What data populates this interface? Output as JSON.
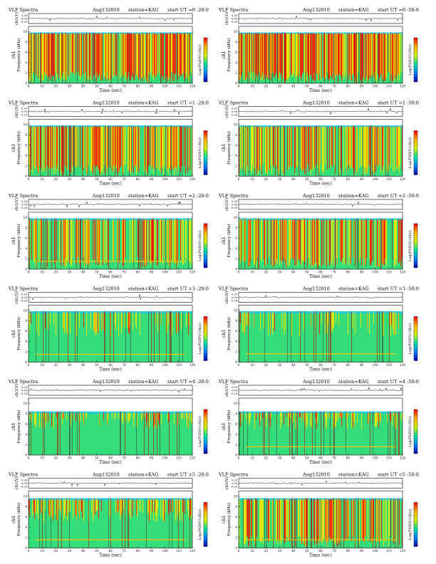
{
  "page": {
    "panels_per_row": 2,
    "rows": 6
  },
  "chart_data": [
    {
      "type": "heatmap",
      "title": "VLF Spectra",
      "date": "Aug132010",
      "station": "station=KAG",
      "start": "start UT =0 :20:0",
      "xlabel": "Time (sec)",
      "ylabel": "Frequency (kHz)",
      "ch_label": "ch1",
      "trace_label": "ch1(V)",
      "trace_ticks": [
        "0.20",
        "0.00",
        "-0.20"
      ],
      "x_ticks": [
        0,
        10,
        20,
        30,
        40,
        50,
        60,
        70,
        80,
        90,
        100,
        110,
        120
      ],
      "y_ticks": [
        0,
        2,
        4,
        6,
        8,
        10
      ],
      "xlim": [
        0,
        120
      ],
      "ylim": [
        0,
        11
      ],
      "colorbar_label": "Log(PSD(V/√Hz))",
      "colorbar_ticks": [
        "-",
        "-",
        "-",
        "-"
      ],
      "activity": 0.85,
      "top_khz": 9.8,
      "line_khz": null
    },
    {
      "type": "heatmap",
      "title": "VLF Spectra",
      "date": "Aug132010",
      "station": "station=KAG",
      "start": "start UT =0 :50:0",
      "xlabel": "Time (sec)",
      "ylabel": "Frequency (kHz)",
      "ch_label": "ch1",
      "trace_label": "ch1(V)",
      "trace_ticks": [
        "0.20",
        "0.00",
        "-0.20"
      ],
      "x_ticks": [
        0,
        10,
        20,
        30,
        40,
        50,
        60,
        70,
        80,
        90,
        100,
        110,
        120
      ],
      "y_ticks": [
        0,
        2,
        4,
        6,
        8,
        10
      ],
      "xlim": [
        0,
        120
      ],
      "ylim": [
        0,
        11
      ],
      "colorbar_label": "Log(PSD(V/√Hz))",
      "colorbar_ticks": [
        "-",
        "-",
        "-",
        "-"
      ],
      "activity": 0.85,
      "top_khz": 9.8,
      "line_khz": null
    },
    {
      "type": "heatmap",
      "title": "VLF Spectra",
      "date": "Aug132010",
      "station": "station=KAG",
      "start": "start UT =1 :20:0",
      "xlabel": "Time (sec)",
      "ylabel": "Frequency (kHz)",
      "ch_label": "ch1",
      "trace_label": "ch1(V)",
      "trace_ticks": [
        "0.20",
        "0.00",
        "-0.20"
      ],
      "x_ticks": [
        0,
        10,
        20,
        30,
        40,
        50,
        60,
        70,
        80,
        90,
        100,
        110,
        120
      ],
      "y_ticks": [
        0,
        2,
        4,
        6,
        8,
        10
      ],
      "xlim": [
        0,
        120
      ],
      "ylim": [
        0,
        11
      ],
      "colorbar_label": "Log(PSD(V/√Hz))",
      "colorbar_ticks": [
        "-",
        "-",
        "-",
        "-"
      ],
      "activity": 0.7,
      "top_khz": 9.8,
      "line_khz": null
    },
    {
      "type": "heatmap",
      "title": "VLF Spectra",
      "date": "Aug132010",
      "station": "station=KAG",
      "start": "start UT =1 :50:0",
      "xlabel": "Time (sec)",
      "ylabel": "Frequency (kHz)",
      "ch_label": "ch1",
      "trace_label": "ch1(V)",
      "trace_ticks": [
        "0.20",
        "0.00",
        "-0.20"
      ],
      "x_ticks": [
        0,
        10,
        20,
        30,
        40,
        50,
        60,
        70,
        80,
        90,
        100,
        110,
        120
      ],
      "y_ticks": [
        0,
        2,
        4,
        6,
        8,
        10
      ],
      "xlim": [
        0,
        120
      ],
      "ylim": [
        0,
        11
      ],
      "colorbar_label": "Log(PSD(V/√Hz))",
      "colorbar_ticks": [
        "-",
        "-",
        "-",
        "-"
      ],
      "activity": 0.6,
      "top_khz": 9.8,
      "line_khz": null
    },
    {
      "type": "heatmap",
      "title": "VLF Spectra",
      "date": "Aug132010",
      "station": "station=KAG",
      "start": "start UT =2 :20:0",
      "xlabel": "Time (sec)",
      "ylabel": "Frequency (kHz)",
      "ch_label": "ch1",
      "trace_label": "ch1(V)",
      "trace_ticks": [
        "0.20",
        "0.00",
        "-0.20"
      ],
      "x_ticks": [
        0,
        10,
        20,
        30,
        40,
        50,
        60,
        70,
        80,
        90,
        100,
        110,
        120
      ],
      "y_ticks": [
        0,
        2,
        4,
        6,
        8,
        10
      ],
      "xlim": [
        0,
        120
      ],
      "ylim": [
        0,
        11
      ],
      "colorbar_label": "Log(PSD(V/√Hz))",
      "colorbar_ticks": [
        "-",
        "-",
        "-",
        "-"
      ],
      "activity": 0.55,
      "top_khz": 9.8,
      "line_khz": 1.5
    },
    {
      "type": "heatmap",
      "title": "VLF Spectra",
      "date": "Aug132010",
      "station": "station=KAG",
      "start": "start UT =2 :50:0",
      "xlabel": "Time (sec)",
      "ylabel": "Frequency (kHz)",
      "ch_label": "ch1",
      "trace_label": "ch1(V)",
      "trace_ticks": [
        "0.20",
        "0.00",
        "-0.20"
      ],
      "x_ticks": [
        0,
        10,
        20,
        30,
        40,
        50,
        60,
        70,
        80,
        90,
        100,
        110,
        120
      ],
      "y_ticks": [
        0,
        2,
        4,
        6,
        8,
        10
      ],
      "xlim": [
        0,
        120
      ],
      "ylim": [
        0,
        11
      ],
      "colorbar_label": "Log(PSD(V/√Hz))",
      "colorbar_ticks": [
        "-",
        "-",
        "-",
        "-"
      ],
      "activity": 0.6,
      "top_khz": 9.8,
      "line_khz": null
    },
    {
      "type": "heatmap",
      "title": "VLF Spectra",
      "date": "Aug132010",
      "station": "station=KAG",
      "start": "start UT =3 :20:0",
      "xlabel": "Time (sec)",
      "ylabel": "Frequency (kHz)",
      "ch_label": "ch1",
      "trace_label": "ch1(V)",
      "trace_ticks": [
        "0.20",
        "0.00",
        "-0.20"
      ],
      "x_ticks": [
        0,
        10,
        20,
        30,
        40,
        50,
        60,
        70,
        80,
        90,
        100,
        110,
        120
      ],
      "y_ticks": [
        0,
        2,
        4,
        6,
        8,
        10
      ],
      "xlim": [
        0,
        120
      ],
      "ylim": [
        0,
        11
      ],
      "colorbar_label": "Log(PSD(V/√Hz))",
      "colorbar_ticks": [
        "-",
        "-",
        "-",
        "-"
      ],
      "activity": 0.25,
      "top_khz": 9.8,
      "line_khz": 1.5
    },
    {
      "type": "heatmap",
      "title": "VLF Spectra",
      "date": "Aug132010",
      "station": "station=KAG",
      "start": "start UT =3 :50:0",
      "xlabel": "Time (sec)",
      "ylabel": "Frequency (kHz)",
      "ch_label": "ch1",
      "trace_label": "ch1(V)",
      "trace_ticks": [
        "0.20",
        "0.00",
        "-0.20"
      ],
      "x_ticks": [
        0,
        10,
        20,
        30,
        40,
        50,
        60,
        70,
        80,
        90,
        100,
        110,
        120
      ],
      "y_ticks": [
        0,
        2,
        4,
        6,
        8,
        10
      ],
      "xlim": [
        0,
        120
      ],
      "ylim": [
        0,
        11
      ],
      "colorbar_label": "Log(PSD(V/√Hz))",
      "colorbar_ticks": [
        "-",
        "-",
        "-",
        "-"
      ],
      "activity": 0.22,
      "top_khz": 9.8,
      "line_khz": 1.6
    },
    {
      "type": "heatmap",
      "title": "VLF Spectra",
      "date": "Aug132010",
      "station": "station=KAG",
      "start": "start UT =4 :20:0",
      "xlabel": "Time (sec)",
      "ylabel": "Frequency (kHz)",
      "ch_label": "ch1",
      "trace_label": "ch1(V)",
      "trace_ticks": [
        "0.20",
        "0.00",
        "-0.20"
      ],
      "x_ticks": [
        0,
        10,
        20,
        30,
        40,
        50,
        60,
        70,
        80,
        90,
        100,
        110,
        120
      ],
      "y_ticks": [
        0,
        2,
        4,
        6,
        8,
        10
      ],
      "xlim": [
        0,
        120
      ],
      "ylim": [
        0,
        11
      ],
      "colorbar_label": "Log(PSD(V/√Hz))",
      "colorbar_ticks": [
        "-",
        "-",
        "-",
        "-"
      ],
      "activity": 0.35,
      "top_khz": 8.4,
      "line_khz": null
    },
    {
      "type": "heatmap",
      "title": "VLF Spectra",
      "date": "Aug132010",
      "station": "station=KAG",
      "start": "start UT =4 :50:0",
      "xlabel": "Time (sec)",
      "ylabel": "Frequency (kHz)",
      "ch_label": "ch1",
      "trace_label": "ch1(V)",
      "trace_ticks": [
        "0.20",
        "0.00",
        "-0.20"
      ],
      "x_ticks": [
        0,
        10,
        20,
        30,
        40,
        50,
        60,
        70,
        80,
        90,
        100,
        110,
        120
      ],
      "y_ticks": [
        0,
        2,
        4,
        6,
        8,
        10
      ],
      "xlim": [
        0,
        120
      ],
      "ylim": [
        0,
        11
      ],
      "colorbar_label": "Log(PSD(V/√Hz))",
      "colorbar_ticks": [
        "-",
        "-",
        "-",
        "-"
      ],
      "activity": 0.45,
      "top_khz": 8.4,
      "line_khz": 1.6
    },
    {
      "type": "heatmap",
      "title": "VLF Spectra",
      "date": "Aug132010",
      "station": "station=KAG",
      "start": "start UT =5 :20:0",
      "xlabel": "Time (sec)",
      "ylabel": "Frequency (kHz)",
      "ch_label": "ch1",
      "trace_label": "ch1(V)",
      "trace_ticks": [
        "0.20",
        "0.00",
        "-0.20"
      ],
      "x_ticks": [
        0,
        10,
        20,
        30,
        40,
        50,
        60,
        70,
        80,
        90,
        100,
        110,
        120
      ],
      "y_ticks": [
        0,
        2,
        4,
        6,
        8,
        10
      ],
      "xlim": [
        0,
        120
      ],
      "ylim": [
        0,
        11
      ],
      "colorbar_label": "Log(PSD(V/√Hz))",
      "colorbar_ticks": [
        "-",
        "-",
        "-",
        "-"
      ],
      "activity": 0.5,
      "top_khz": 9.6,
      "line_khz": 1.6
    },
    {
      "type": "heatmap",
      "title": "VLF Spectra",
      "date": "Aug132010",
      "station": "station=KAG",
      "start": "start UT =5 :50:0",
      "xlabel": "Time (sec)",
      "ylabel": "Frequency (kHz)",
      "ch_label": "ch1",
      "trace_label": "ch1(V)",
      "trace_ticks": [
        "0.20",
        "0.00",
        "-0.20"
      ],
      "x_ticks": [
        0,
        10,
        20,
        30,
        40,
        50,
        60,
        70,
        80,
        90,
        100,
        110,
        120
      ],
      "y_ticks": [
        0,
        2,
        4,
        6,
        8,
        10
      ],
      "xlim": [
        0,
        120
      ],
      "ylim": [
        0,
        11
      ],
      "colorbar_label": "Log(PSD(V/√Hz))",
      "colorbar_ticks": [
        "-",
        "-",
        "-",
        "-"
      ],
      "activity": 0.55,
      "top_khz": 9.6,
      "line_khz": 1.6
    }
  ]
}
